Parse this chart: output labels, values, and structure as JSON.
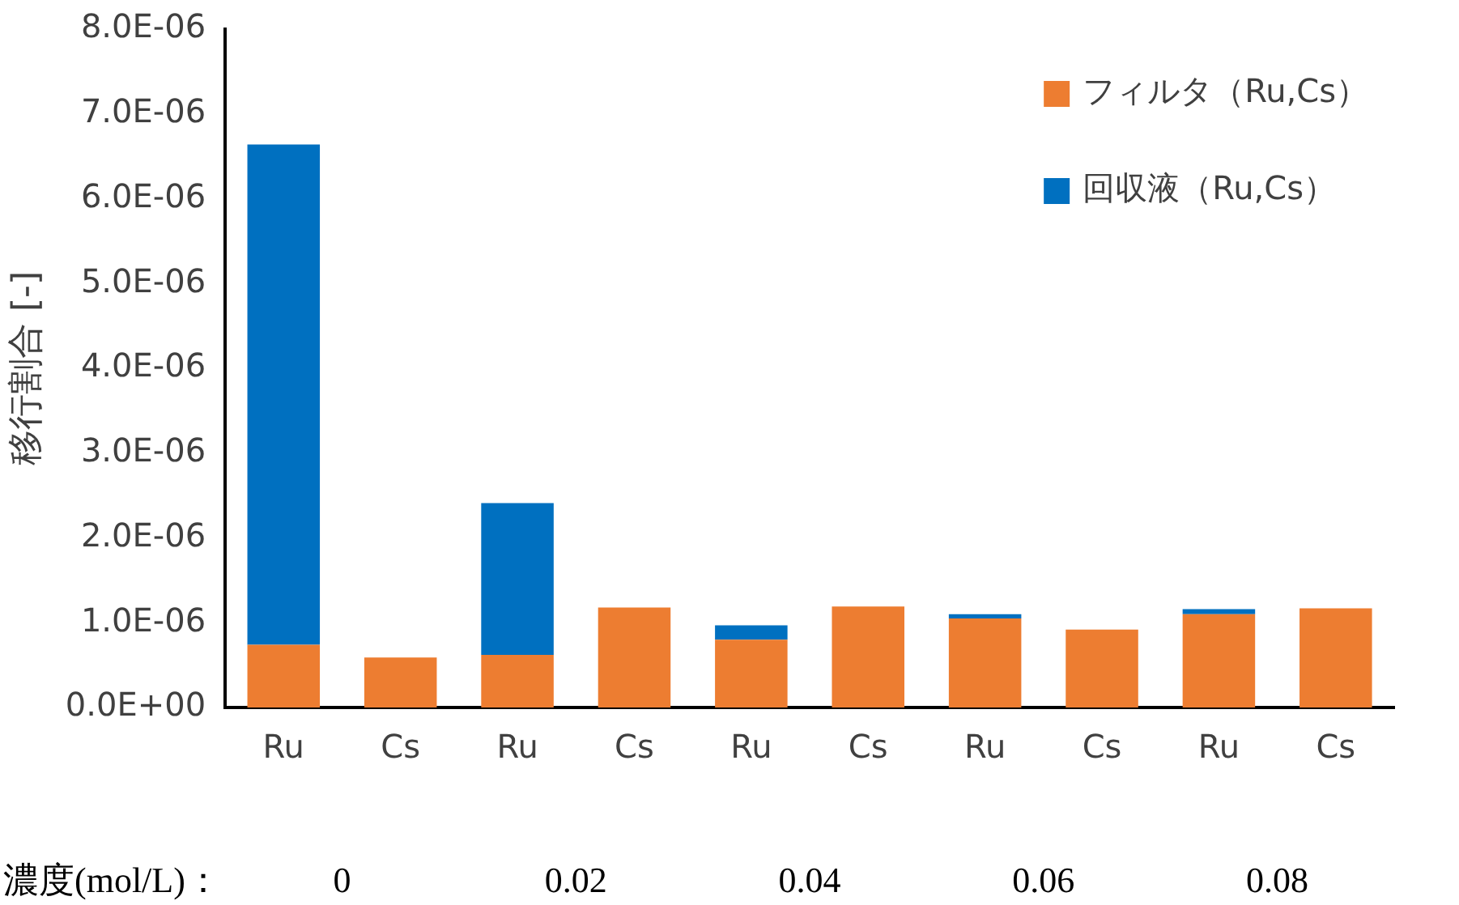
{
  "chart_data": {
    "type": "bar",
    "stacked": true,
    "ylabel": "移行割合 [-]",
    "categories": [
      "Ru",
      "Cs",
      "Ru",
      "Cs",
      "Ru",
      "Cs",
      "Ru",
      "Cs",
      "Ru",
      "Cs"
    ],
    "series": [
      {
        "name": "フィルタ（Ru,Cs）",
        "color": "#ed7d31",
        "values": [
          7.4e-07,
          5.9e-07,
          6.2e-07,
          1.18e-06,
          8e-07,
          1.19e-06,
          1.05e-06,
          9.2e-07,
          1.1e-06,
          1.17e-06
        ]
      },
      {
        "name": "回収液（Ru,Cs）",
        "color": "#0070c0",
        "values": [
          5.9e-06,
          0,
          1.79e-06,
          0,
          1.7e-07,
          0,
          5e-08,
          0,
          6e-08,
          0
        ]
      }
    ],
    "ylim": [
      0,
      8e-06
    ],
    "yticks": [
      {
        "value": 0,
        "label": "0.0E+00"
      },
      {
        "value": 1e-06,
        "label": "1.0E-06"
      },
      {
        "value": 2e-06,
        "label": "2.0E-06"
      },
      {
        "value": 3e-06,
        "label": "3.0E-06"
      },
      {
        "value": 4e-06,
        "label": "4.0E-06"
      },
      {
        "value": 5e-06,
        "label": "5.0E-06"
      },
      {
        "value": 6e-06,
        "label": "6.0E-06"
      },
      {
        "value": 7e-06,
        "label": "7.0E-06"
      },
      {
        "value": 8e-06,
        "label": "8.0E-06"
      }
    ],
    "annotations": [
      "濃度(mol/L)：",
      "0",
      "0.02",
      "0.04",
      "0.06",
      "0.08"
    ],
    "legend": "top right",
    "grid": false
  }
}
